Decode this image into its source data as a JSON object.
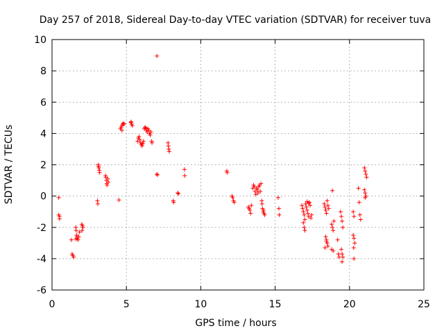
{
  "chart_data": {
    "type": "scatter",
    "title": "Day 257 of 2018, Sidereal Day-to-day VTEC variation (SDTVAR) for receiver tuva",
    "xlabel": "GPS time / hours",
    "ylabel": "SDTVAR / TECUs",
    "xlim": [
      0,
      25
    ],
    "ylim": [
      -6,
      10
    ],
    "xticks": [
      0,
      5,
      10,
      15,
      20,
      25
    ],
    "yticks": [
      -6,
      -4,
      -2,
      0,
      2,
      4,
      6,
      8,
      10
    ],
    "grid": true,
    "marker": "plus",
    "color": "#ff0000",
    "series": [
      {
        "name": "SDTVAR",
        "points": [
          [
            0.45,
            -0.1
          ],
          [
            0.45,
            -1.2
          ],
          [
            0.5,
            -1.3
          ],
          [
            0.5,
            -1.45
          ],
          [
            1.3,
            -2.8
          ],
          [
            1.35,
            -3.7
          ],
          [
            1.4,
            -3.8
          ],
          [
            1.45,
            -3.9
          ],
          [
            1.6,
            -2.0
          ],
          [
            1.62,
            -2.2
          ],
          [
            1.65,
            -2.5
          ],
          [
            1.68,
            -2.6
          ],
          [
            1.7,
            -2.7
          ],
          [
            1.75,
            -2.8
          ],
          [
            1.6,
            -2.75
          ],
          [
            1.8,
            -2.6
          ],
          [
            1.85,
            -2.3
          ],
          [
            2.0,
            -1.8
          ],
          [
            2.05,
            -1.9
          ],
          [
            2.08,
            -2.0
          ],
          [
            2.02,
            -2.2
          ],
          [
            3.1,
            2.0
          ],
          [
            3.12,
            1.9
          ],
          [
            3.15,
            1.8
          ],
          [
            3.18,
            1.65
          ],
          [
            3.2,
            1.5
          ],
          [
            3.05,
            -0.3
          ],
          [
            3.08,
            -0.5
          ],
          [
            3.6,
            1.3
          ],
          [
            3.62,
            1.2
          ],
          [
            3.65,
            1.0
          ],
          [
            3.68,
            0.8
          ],
          [
            3.7,
            0.7
          ],
          [
            3.75,
            1.1
          ],
          [
            3.78,
            0.9
          ],
          [
            4.5,
            -0.25
          ],
          [
            4.6,
            4.3
          ],
          [
            4.65,
            4.4
          ],
          [
            4.7,
            4.5
          ],
          [
            4.75,
            4.6
          ],
          [
            4.8,
            4.65
          ],
          [
            4.85,
            4.6
          ],
          [
            4.7,
            4.2
          ],
          [
            5.3,
            4.7
          ],
          [
            5.35,
            4.6
          ],
          [
            5.4,
            4.5
          ],
          [
            5.32,
            4.75
          ],
          [
            5.75,
            3.5
          ],
          [
            5.8,
            3.7
          ],
          [
            5.85,
            3.8
          ],
          [
            5.9,
            3.6
          ],
          [
            5.95,
            3.4
          ],
          [
            6.0,
            3.3
          ],
          [
            6.05,
            3.2
          ],
          [
            6.1,
            3.35
          ],
          [
            6.15,
            3.5
          ],
          [
            6.2,
            4.3
          ],
          [
            6.25,
            4.4
          ],
          [
            6.3,
            4.35
          ],
          [
            6.35,
            4.2
          ],
          [
            6.4,
            4.1
          ],
          [
            6.45,
            4.3
          ],
          [
            6.5,
            4.2
          ],
          [
            6.55,
            4.0
          ],
          [
            6.6,
            3.9
          ],
          [
            6.65,
            4.1
          ],
          [
            6.7,
            3.5
          ],
          [
            6.72,
            3.4
          ],
          [
            7.05,
            8.95
          ],
          [
            7.05,
            1.4
          ],
          [
            7.08,
            1.35
          ],
          [
            7.8,
            3.4
          ],
          [
            7.82,
            3.2
          ],
          [
            7.85,
            3.0
          ],
          [
            7.88,
            2.85
          ],
          [
            8.15,
            -0.3
          ],
          [
            8.18,
            -0.4
          ],
          [
            8.45,
            0.2
          ],
          [
            8.5,
            0.15
          ],
          [
            8.9,
            1.7
          ],
          [
            8.92,
            1.3
          ],
          [
            11.75,
            1.6
          ],
          [
            11.78,
            1.5
          ],
          [
            12.1,
            0.0
          ],
          [
            12.15,
            -0.1
          ],
          [
            12.2,
            -0.3
          ],
          [
            12.25,
            -0.4
          ],
          [
            13.2,
            -0.7
          ],
          [
            13.25,
            -0.8
          ],
          [
            13.3,
            -0.9
          ],
          [
            13.35,
            -1.1
          ],
          [
            13.4,
            -0.6
          ],
          [
            13.5,
            0.5
          ],
          [
            13.55,
            0.7
          ],
          [
            13.6,
            0.6
          ],
          [
            13.65,
            0.3
          ],
          [
            13.7,
            0.1
          ],
          [
            13.75,
            0.5
          ],
          [
            13.8,
            0.4
          ],
          [
            13.85,
            0.2
          ],
          [
            13.9,
            0.6
          ],
          [
            13.95,
            0.7
          ],
          [
            14.0,
            0.3
          ],
          [
            14.05,
            0.8
          ],
          [
            14.1,
            -0.3
          ],
          [
            14.12,
            -0.5
          ],
          [
            14.15,
            -0.8
          ],
          [
            14.2,
            -1.0
          ],
          [
            14.25,
            -1.1
          ],
          [
            14.3,
            -1.2
          ],
          [
            14.22,
            -0.9
          ],
          [
            15.2,
            -0.1
          ],
          [
            15.25,
            -0.8
          ],
          [
            15.28,
            -1.2
          ],
          [
            16.8,
            -0.6
          ],
          [
            16.85,
            -0.8
          ],
          [
            16.9,
            -1.0
          ],
          [
            16.95,
            -1.2
          ],
          [
            17.0,
            -1.5
          ],
          [
            17.05,
            -0.5
          ],
          [
            17.1,
            -0.7
          ],
          [
            17.15,
            -0.9
          ],
          [
            17.2,
            -1.1
          ],
          [
            17.25,
            -1.3
          ],
          [
            17.3,
            -0.4
          ],
          [
            17.35,
            -0.6
          ],
          [
            17.4,
            -1.4
          ],
          [
            17.45,
            -1.2
          ],
          [
            16.9,
            -1.7
          ],
          [
            16.95,
            -2.0
          ],
          [
            17.0,
            -2.2
          ],
          [
            17.15,
            -0.35
          ],
          [
            17.25,
            -0.45
          ],
          [
            18.3,
            -0.5
          ],
          [
            18.35,
            -0.7
          ],
          [
            18.4,
            -0.9
          ],
          [
            18.45,
            -1.1
          ],
          [
            18.5,
            -0.3
          ],
          [
            18.55,
            -0.6
          ],
          [
            18.6,
            -0.8
          ],
          [
            18.4,
            -2.6
          ],
          [
            18.45,
            -2.8
          ],
          [
            18.5,
            -3.0
          ],
          [
            18.55,
            -3.2
          ],
          [
            18.35,
            -3.3
          ],
          [
            18.45,
            -2.9
          ],
          [
            18.8,
            -1.8
          ],
          [
            18.85,
            -2.0
          ],
          [
            18.9,
            -2.2
          ],
          [
            18.95,
            -1.6
          ],
          [
            18.8,
            -3.4
          ],
          [
            18.9,
            -3.5
          ],
          [
            18.85,
            0.35
          ],
          [
            19.2,
            -2.8
          ],
          [
            19.25,
            -3.7
          ],
          [
            19.3,
            -3.9
          ],
          [
            19.4,
            -1.0
          ],
          [
            19.45,
            -1.3
          ],
          [
            19.5,
            -1.6
          ],
          [
            19.55,
            -2.0
          ],
          [
            19.45,
            -3.4
          ],
          [
            19.5,
            -3.7
          ],
          [
            19.55,
            -3.9
          ],
          [
            19.5,
            -4.2
          ],
          [
            20.25,
            -2.5
          ],
          [
            20.3,
            -2.7
          ],
          [
            20.35,
            -3.0
          ],
          [
            20.28,
            -3.3
          ],
          [
            20.3,
            -4.0
          ],
          [
            20.25,
            -1.0
          ],
          [
            20.3,
            -1.3
          ],
          [
            20.6,
            0.5
          ],
          [
            20.65,
            -0.4
          ],
          [
            20.7,
            -1.2
          ],
          [
            20.75,
            -1.5
          ],
          [
            21.0,
            1.8
          ],
          [
            21.05,
            1.6
          ],
          [
            21.1,
            1.4
          ],
          [
            21.15,
            1.2
          ],
          [
            21.0,
            0.4
          ],
          [
            21.05,
            0.2
          ],
          [
            21.1,
            0.0
          ],
          [
            21.05,
            -0.1
          ]
        ]
      }
    ]
  }
}
